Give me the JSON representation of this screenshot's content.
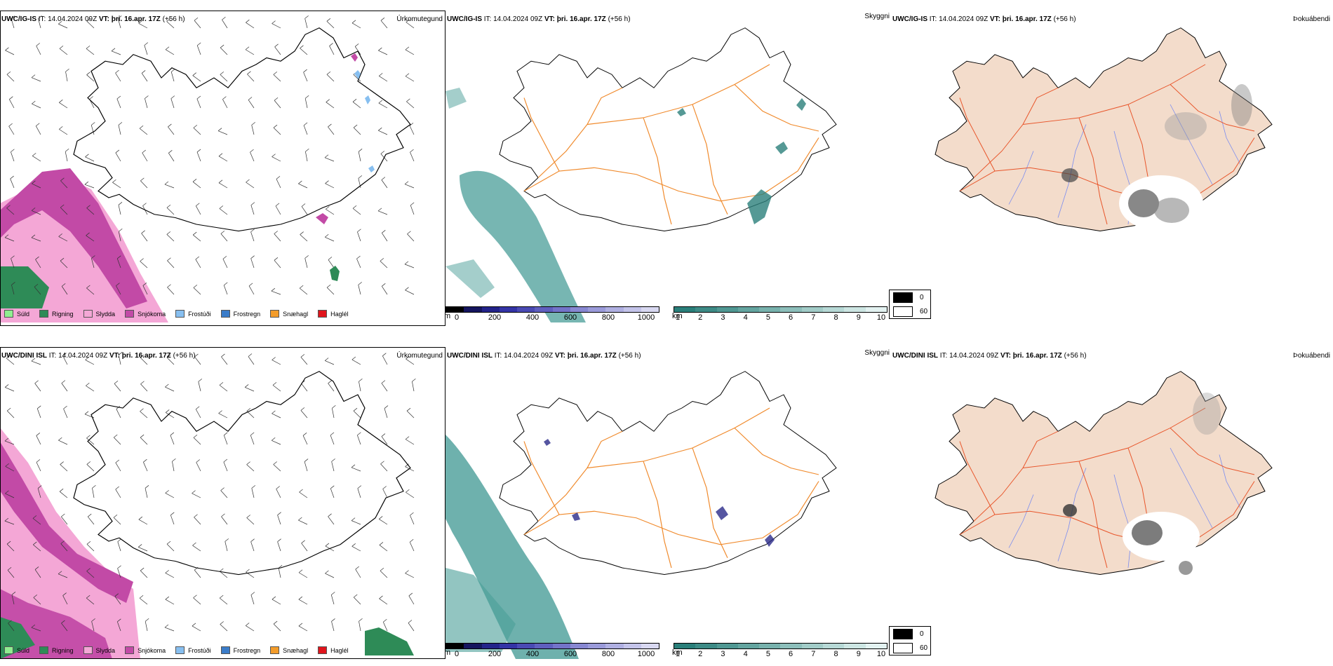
{
  "rows": [
    {
      "model": "UWC/IG-IS",
      "it_label": "IT:",
      "it_value": "14.04.2024 09Z",
      "vt_label": "VT:",
      "vt_value": "þri. 16.apr. 17Z",
      "lead": "(+56 h)"
    },
    {
      "model": "UWC/DINI ISL",
      "it_label": "IT:",
      "it_value": "14.04.2024 09Z",
      "vt_label": "VT:",
      "vt_value": "þri. 16.apr. 17Z",
      "lead": "(+56 h)"
    }
  ],
  "panel_titles": {
    "precip_type": "Úrkomutegund",
    "visibility": "Skyggni",
    "fog": "Þokuábendi"
  },
  "precip_legend": [
    {
      "label": "Súld",
      "color": "#90ee90"
    },
    {
      "label": "Rigning",
      "color": "#2e8b57"
    },
    {
      "label": "Slydda",
      "color": "#f4a7d6"
    },
    {
      "label": "Snjókoma",
      "color": "#c24aa6"
    },
    {
      "label": "Frostúði",
      "color": "#87bff0"
    },
    {
      "label": "Frostregn",
      "color": "#3a7cc9"
    },
    {
      "label": "Snæhagl",
      "color": "#f39c2a"
    },
    {
      "label": "Haglél",
      "color": "#e0141c"
    }
  ],
  "colorbar_m": {
    "unit": "m",
    "ticks": [
      "0",
      "200",
      "400",
      "600",
      "800",
      "1000"
    ],
    "colors": [
      "#000000",
      "#15155e",
      "#23238a",
      "#3434a6",
      "#4a4ab4",
      "#5f5fbf",
      "#7373c9",
      "#8888d2",
      "#9b9bda",
      "#b0b0e2",
      "#c4c4ea",
      "#d8d8f1"
    ]
  },
  "colorbar_km": {
    "unit": "km",
    "ticks": [
      "1",
      "2",
      "3",
      "4",
      "5",
      "6",
      "7",
      "8",
      "9",
      "10"
    ],
    "colors": [
      "#2a7f7a",
      "#3d8b86",
      "#509893",
      "#64a5a0",
      "#78b2ad",
      "#8dbfbb",
      "#a2ccc8",
      "#b7d9d6",
      "#cde6e3",
      "#e3f2f1"
    ]
  },
  "fog_legend": {
    "values": [
      "0",
      "60"
    ],
    "colors": [
      "#000000",
      "#ffffff"
    ]
  },
  "map_colors": {
    "land_fog": "#f3dccb",
    "roads": "#f08a2c",
    "roads_fog": "#e8552a",
    "rivers": "#7a8cf0",
    "coast": "#000000",
    "sea_vis": "#4a9e98"
  }
}
